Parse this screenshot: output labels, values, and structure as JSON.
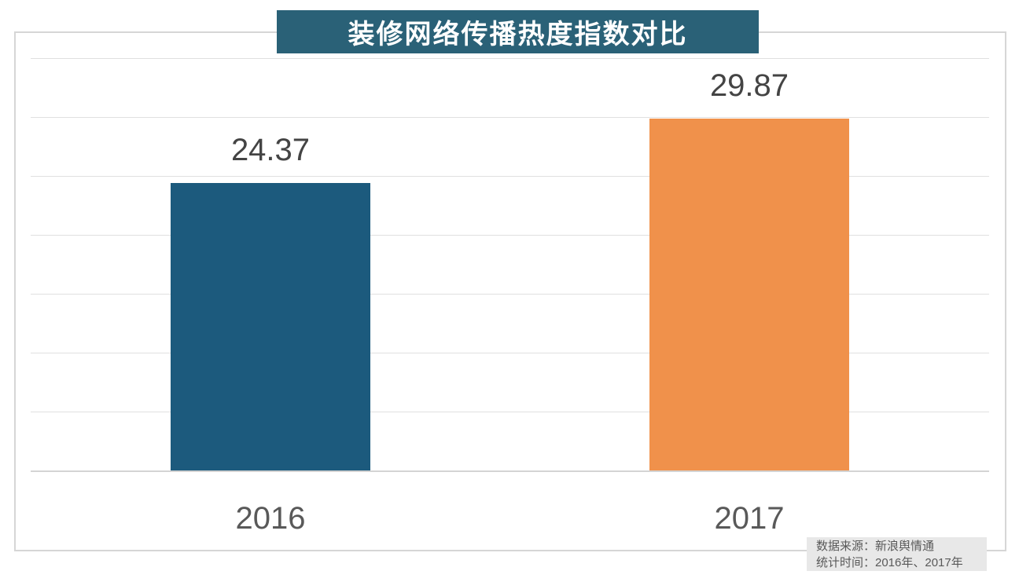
{
  "title": {
    "text": "装修网络传播热度指数对比",
    "bg_color": "#2a6177",
    "text_color": "#ffffff"
  },
  "chart_data": {
    "type": "bar",
    "title": "装修网络传播热度指数对比",
    "categories": [
      "2016",
      "2017"
    ],
    "values": [
      24.37,
      29.87
    ],
    "bar_colors": [
      "#1c5a7d",
      "#f0914b"
    ],
    "xlabel": "",
    "ylabel": "",
    "ylim": [
      0,
      35
    ],
    "grid_step": 5,
    "grid": true,
    "legend": false,
    "gridline_color": "#e0e0e0",
    "value_label_color": "#444444",
    "axis_label_color": "#595959"
  },
  "source_note": {
    "line1": "数据来源：新浪舆情通",
    "line2": "统计时间：2016年、2017年",
    "bg_color": "#e8e8e8",
    "text_color": "#595959"
  }
}
